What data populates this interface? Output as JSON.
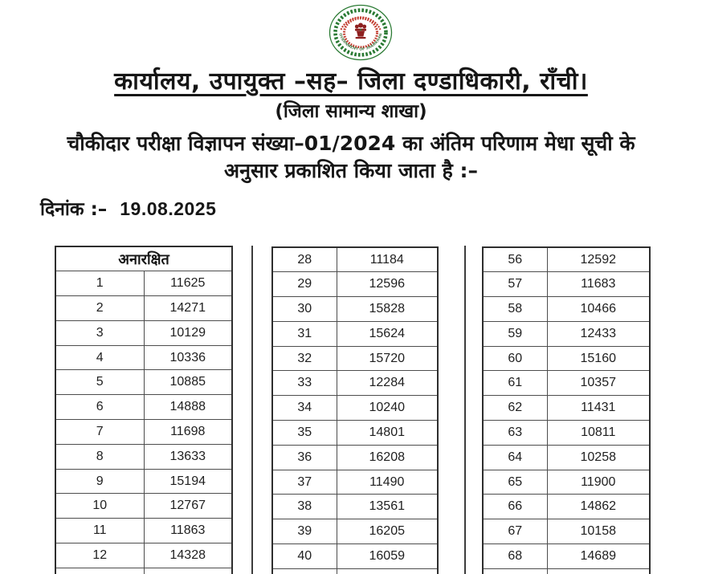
{
  "document": {
    "title": "कार्यालय, उपायुक्त –सह– जिला दण्डाधिकारी, राँची।",
    "subtitle": "(जिला सामान्य शाखा)",
    "notice_line1": "चौकीदार परीक्षा विज्ञापन संख्या–01/2024 का अंतिम परिणाम मेधा सूची के",
    "notice_line2": "अनुसार प्रकाशित किया जाता है :–",
    "date_label": "दिनांक :–",
    "date_value": "19.08.2025"
  },
  "emblem": {
    "label": "Government of Jharkhand seal",
    "ring_text": "GOVERNMENT OF JHARKHAND",
    "colors": {
      "green": "#2a7a33",
      "dark_green": "#1b5e20",
      "red": "#c23b2e",
      "maroon": "#8e2020"
    }
  },
  "merit_tables": [
    {
      "header": "अनारक्षित",
      "rows": [
        [
          "1",
          "11625"
        ],
        [
          "2",
          "14271"
        ],
        [
          "3",
          "10129"
        ],
        [
          "4",
          "10336"
        ],
        [
          "5",
          "10885"
        ],
        [
          "6",
          "14888"
        ],
        [
          "7",
          "11698"
        ],
        [
          "8",
          "13633"
        ],
        [
          "9",
          "15194"
        ],
        [
          "10",
          "12767"
        ],
        [
          "11",
          "11863"
        ],
        [
          "12",
          "14328"
        ]
      ]
    },
    {
      "rows": [
        [
          "28",
          "11184"
        ],
        [
          "29",
          "12596"
        ],
        [
          "30",
          "15828"
        ],
        [
          "31",
          "15624"
        ],
        [
          "32",
          "15720"
        ],
        [
          "33",
          "12284"
        ],
        [
          "34",
          "10240"
        ],
        [
          "35",
          "14801"
        ],
        [
          "36",
          "16208"
        ],
        [
          "37",
          "11490"
        ],
        [
          "38",
          "13561"
        ],
        [
          "39",
          "16205"
        ],
        [
          "40",
          "16059"
        ]
      ]
    },
    {
      "rows": [
        [
          "56",
          "12592"
        ],
        [
          "57",
          "11683"
        ],
        [
          "58",
          "10466"
        ],
        [
          "59",
          "12433"
        ],
        [
          "60",
          "15160"
        ],
        [
          "61",
          "10357"
        ],
        [
          "62",
          "11431"
        ],
        [
          "63",
          "10811"
        ],
        [
          "64",
          "10258"
        ],
        [
          "65",
          "11900"
        ],
        [
          "66",
          "14862"
        ],
        [
          "67",
          "10158"
        ],
        [
          "68",
          "14689"
        ]
      ]
    }
  ]
}
